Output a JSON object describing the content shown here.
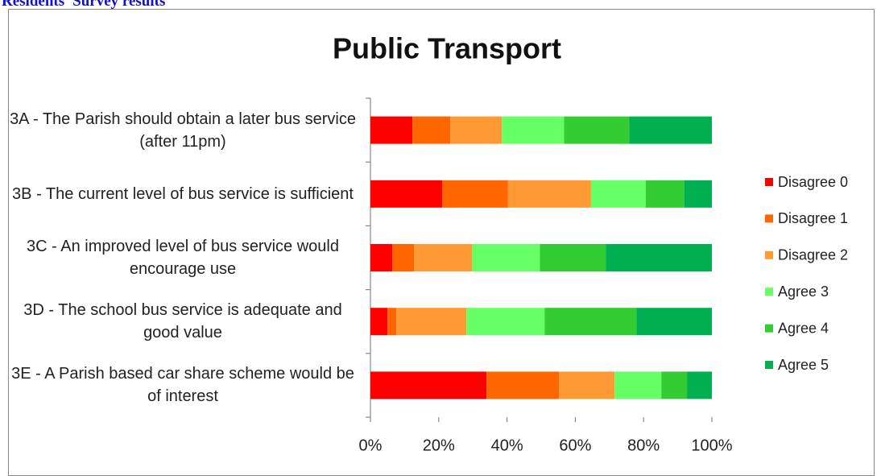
{
  "header": "Residents' Survey results",
  "chart_data": {
    "type": "stacked-barh",
    "title": "Public Transport",
    "categories": [
      "3A - The Parish should obtain a later bus service (after 11pm)",
      "3B - The current level of bus service is sufficient",
      "3C - An improved level of bus service would encourage use",
      "3D - The school bus service is adequate and good value",
      "3E - A Parish based car share scheme would be of interest"
    ],
    "series": [
      {
        "name": "Disagree 0",
        "color": "#ff0000",
        "values": [
          12.3,
          21.0,
          6.4,
          5.0,
          34.0
        ]
      },
      {
        "name": "Disagree 1",
        "color": "#ff6600",
        "values": [
          11.1,
          19.3,
          6.4,
          2.6,
          21.2
        ]
      },
      {
        "name": "Disagree 2",
        "color": "#ff9933",
        "values": [
          15.1,
          24.3,
          17.0,
          20.5,
          16.3
        ]
      },
      {
        "name": "Agree 3",
        "color": "#66ff66",
        "values": [
          18.2,
          16.0,
          19.8,
          22.9,
          13.7
        ]
      },
      {
        "name": "Agree 4",
        "color": "#33cc33",
        "values": [
          19.1,
          11.3,
          19.3,
          26.9,
          7.5
        ]
      },
      {
        "name": "Agree 5",
        "color": "#00b050",
        "values": [
          24.2,
          8.1,
          31.1,
          22.1,
          7.3
        ]
      }
    ],
    "xlim": [
      0,
      100
    ],
    "xticks": [
      {
        "value": 0,
        "label": "0%"
      },
      {
        "value": 20,
        "label": "20%"
      },
      {
        "value": 40,
        "label": "40%"
      },
      {
        "value": 60,
        "label": "60%"
      },
      {
        "value": 80,
        "label": "80%"
      },
      {
        "value": 100,
        "label": "100%"
      }
    ],
    "legend": "right",
    "grid": false
  }
}
